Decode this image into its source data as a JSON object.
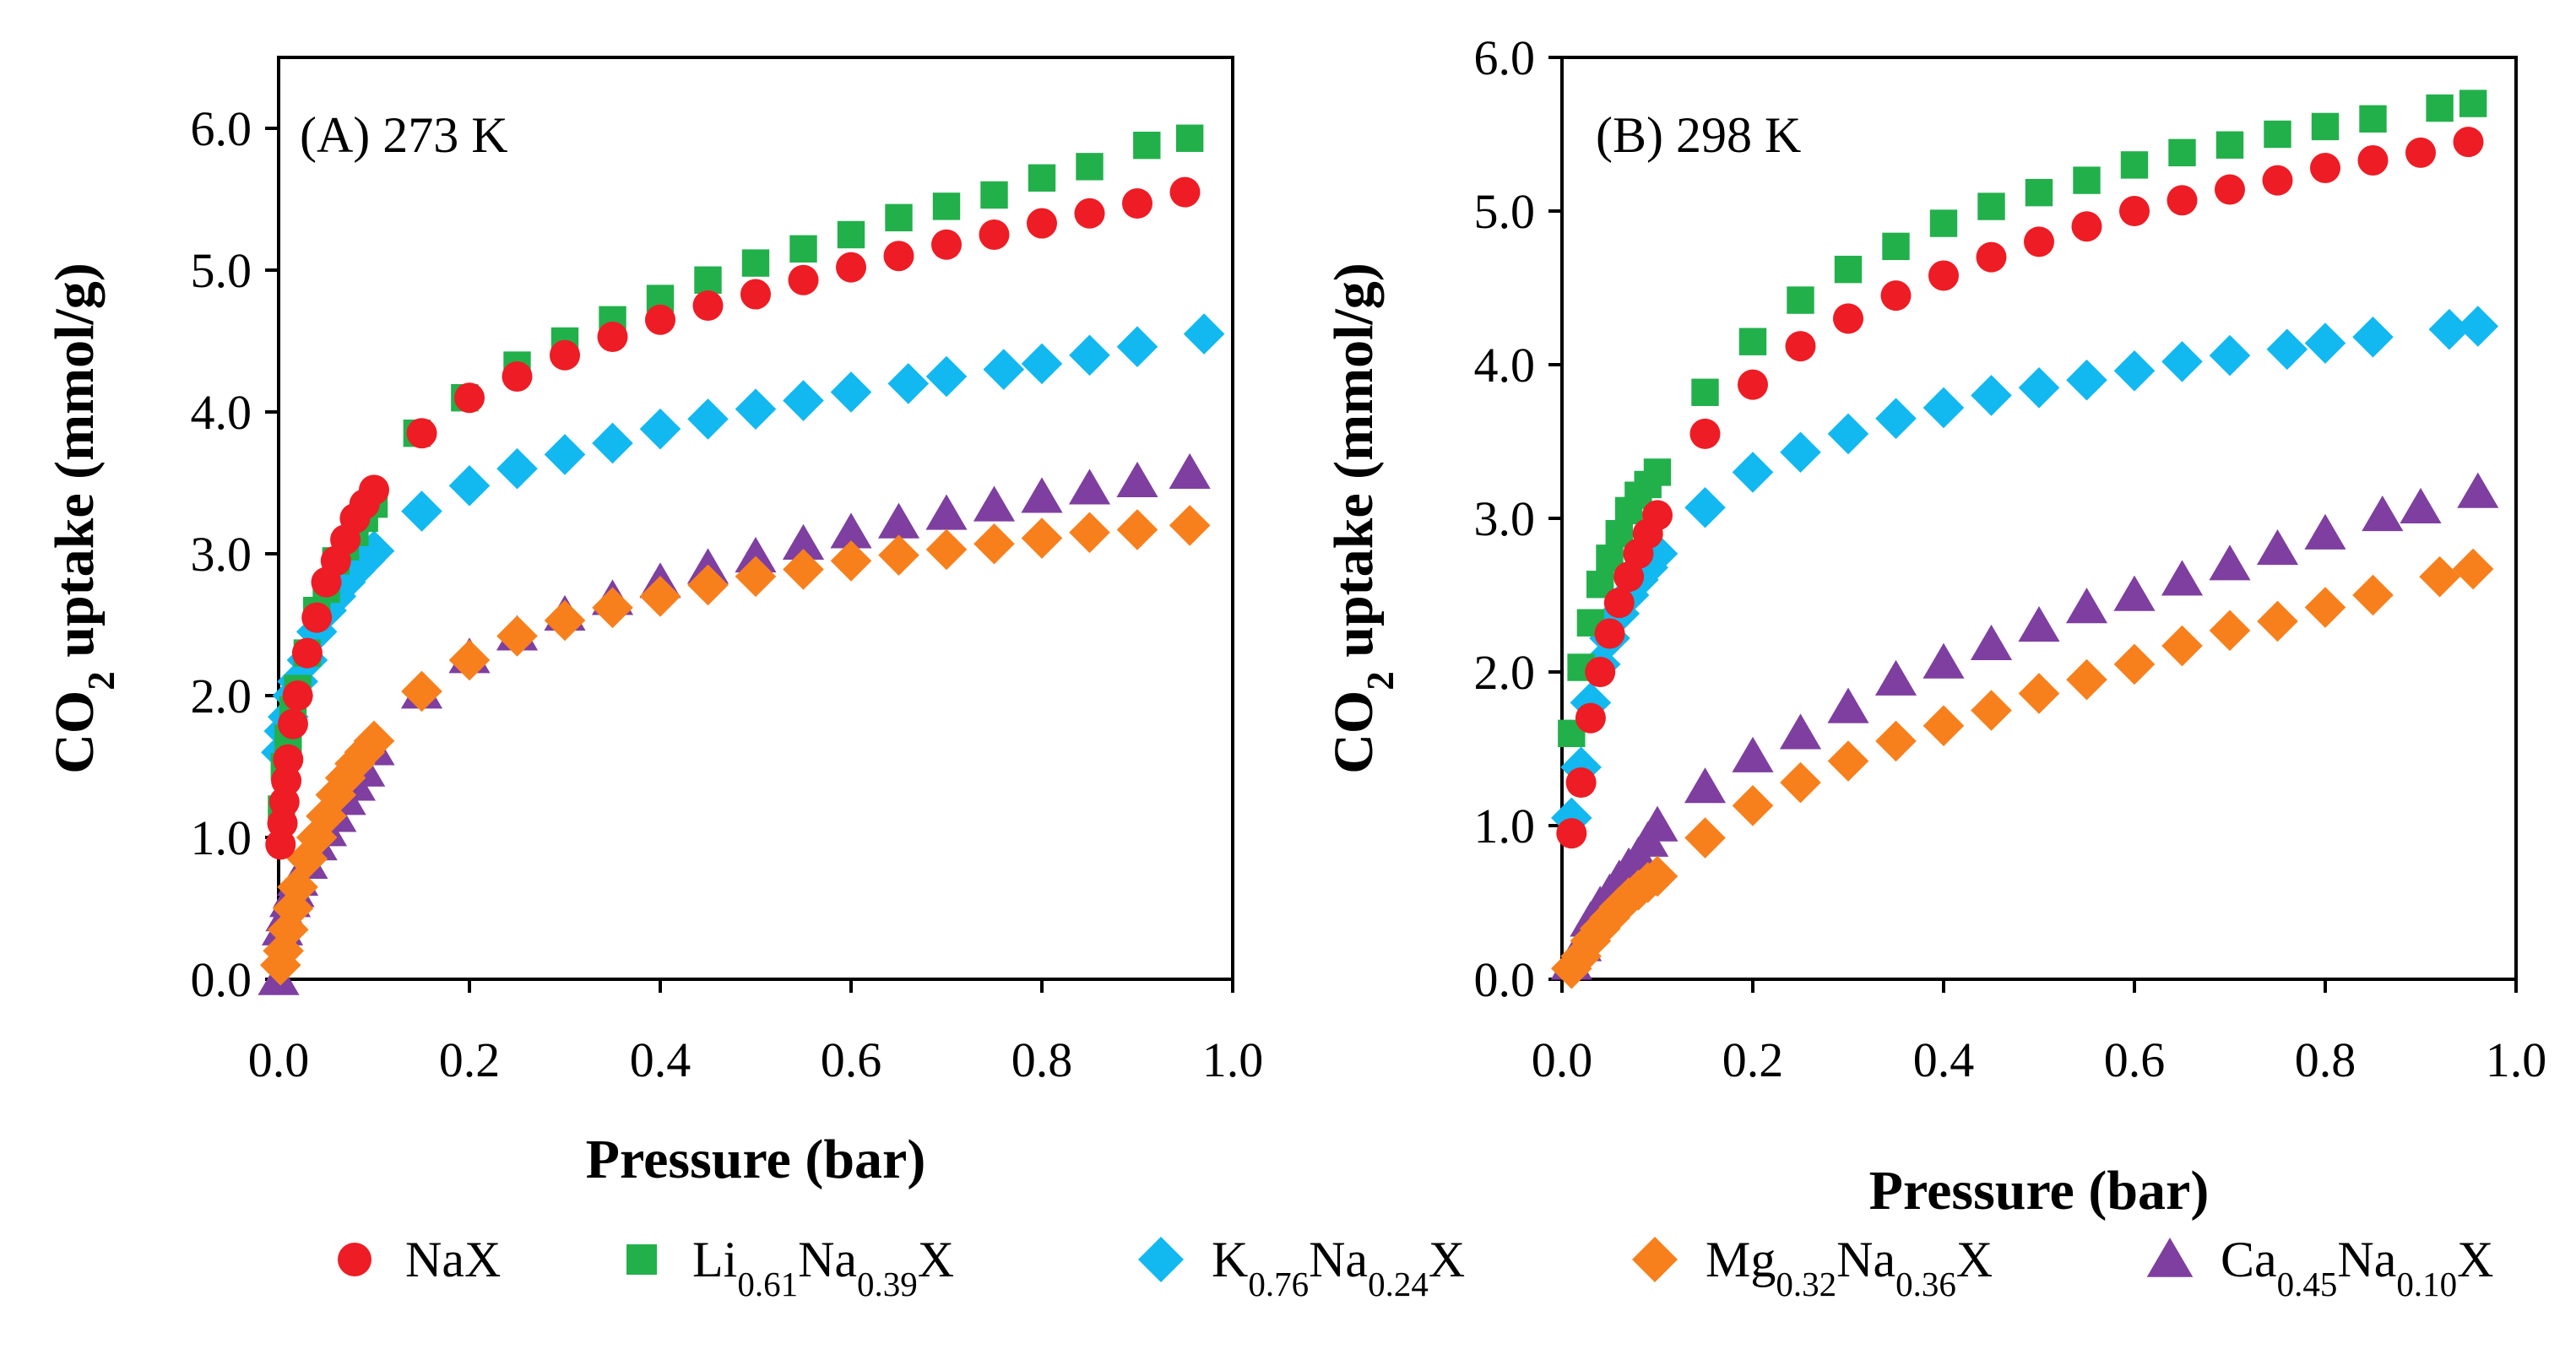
{
  "colors": {
    "NaX": "#ee1c24",
    "Li": "#22b04b",
    "K": "#12b8f0",
    "Mg": "#f7801d",
    "Ca": "#7e3fa0"
  },
  "legend": [
    {
      "key": "NaX",
      "marker": "circle",
      "parts": [
        {
          "t": "NaX"
        }
      ]
    },
    {
      "key": "Li",
      "marker": "square",
      "parts": [
        {
          "t": "Li"
        },
        {
          "t": "0.61",
          "sub": true
        },
        {
          "t": "Na"
        },
        {
          "t": "0.39",
          "sub": true
        },
        {
          "t": "X"
        }
      ]
    },
    {
      "key": "K",
      "marker": "diamond",
      "parts": [
        {
          "t": "K"
        },
        {
          "t": "0.76",
          "sub": true
        },
        {
          "t": "Na"
        },
        {
          "t": "0.24",
          "sub": true
        },
        {
          "t": "X"
        }
      ]
    },
    {
      "key": "Mg",
      "marker": "diamond",
      "parts": [
        {
          "t": "Mg"
        },
        {
          "t": "0.32",
          "sub": true
        },
        {
          "t": "Na"
        },
        {
          "t": "0.36",
          "sub": true
        },
        {
          "t": "X"
        }
      ]
    },
    {
      "key": "Ca",
      "marker": "triangle",
      "parts": [
        {
          "t": "Ca"
        },
        {
          "t": "0.45",
          "sub": true
        },
        {
          "t": "Na"
        },
        {
          "t": "0.10",
          "sub": true
        },
        {
          "t": "X"
        }
      ]
    }
  ],
  "chart_data": [
    {
      "type": "scatter",
      "title": "(A) 273 K",
      "xlabel": "Pressure (bar)",
      "ylabel": "CO2 uptake (mmol/g)",
      "ylabel_parts": [
        {
          "t": "CO"
        },
        {
          "t": "2",
          "sub": true
        },
        {
          "t": " uptake (mmol/g)"
        }
      ],
      "xlim": [
        0.0,
        1.0
      ],
      "ylim": [
        0.0,
        6.5
      ],
      "xticks": [
        "0.0",
        "0.2",
        "0.4",
        "0.6",
        "0.8",
        "1.0"
      ],
      "xtick_values": [
        0.0,
        0.2,
        0.4,
        0.6,
        0.8,
        1.0
      ],
      "yticks": [
        "0.0",
        "1.0",
        "2.0",
        "3.0",
        "4.0",
        "5.0",
        "6.0"
      ],
      "ytick_values": [
        0,
        1,
        2,
        3,
        4,
        5,
        6
      ],
      "series": [
        {
          "name": "NaX",
          "key": "NaX",
          "marker": "circle",
          "x": [
            0.002,
            0.004,
            0.006,
            0.008,
            0.01,
            0.015,
            0.02,
            0.03,
            0.04,
            0.05,
            0.06,
            0.07,
            0.08,
            0.09,
            0.1,
            0.15,
            0.2,
            0.25,
            0.3,
            0.35,
            0.4,
            0.45,
            0.5,
            0.55,
            0.6,
            0.65,
            0.7,
            0.75,
            0.8,
            0.85,
            0.9,
            0.95
          ],
          "y": [
            0.95,
            1.1,
            1.25,
            1.4,
            1.55,
            1.8,
            2.0,
            2.3,
            2.55,
            2.8,
            2.95,
            3.1,
            3.25,
            3.35,
            3.45,
            3.85,
            4.1,
            4.25,
            4.4,
            4.53,
            4.65,
            4.75,
            4.83,
            4.93,
            5.02,
            5.1,
            5.18,
            5.25,
            5.33,
            5.4,
            5.47,
            5.55
          ]
        },
        {
          "name": "Li0.61Na0.39X",
          "key": "Li",
          "marker": "square",
          "x": [
            0.003,
            0.006,
            0.01,
            0.015,
            0.02,
            0.03,
            0.04,
            0.05,
            0.06,
            0.07,
            0.08,
            0.09,
            0.1,
            0.145,
            0.195,
            0.25,
            0.3,
            0.35,
            0.4,
            0.45,
            0.5,
            0.55,
            0.6,
            0.65,
            0.7,
            0.75,
            0.8,
            0.85,
            0.91,
            0.955
          ],
          "y": [
            1.2,
            1.5,
            1.7,
            1.9,
            2.05,
            2.3,
            2.6,
            2.75,
            2.95,
            3.05,
            3.15,
            3.25,
            3.35,
            3.85,
            4.1,
            4.33,
            4.5,
            4.65,
            4.8,
            4.93,
            5.05,
            5.15,
            5.25,
            5.37,
            5.45,
            5.53,
            5.65,
            5.73,
            5.88,
            5.93
          ]
        },
        {
          "name": "K0.76Na0.24X",
          "key": "K",
          "marker": "diamond",
          "x": [
            0.003,
            0.006,
            0.01,
            0.015,
            0.02,
            0.03,
            0.04,
            0.05,
            0.06,
            0.07,
            0.08,
            0.09,
            0.1,
            0.15,
            0.2,
            0.25,
            0.3,
            0.35,
            0.4,
            0.45,
            0.5,
            0.55,
            0.6,
            0.66,
            0.7,
            0.76,
            0.8,
            0.85,
            0.9,
            0.97
          ],
          "y": [
            1.6,
            1.75,
            1.85,
            2.0,
            2.1,
            2.25,
            2.45,
            2.6,
            2.7,
            2.8,
            2.88,
            2.95,
            3.02,
            3.3,
            3.48,
            3.6,
            3.7,
            3.78,
            3.88,
            3.95,
            4.02,
            4.08,
            4.14,
            4.2,
            4.25,
            4.3,
            4.34,
            4.4,
            4.46,
            4.55
          ]
        },
        {
          "name": "Mg0.32Na0.36X",
          "key": "Mg",
          "marker": "diamond",
          "x": [
            0.002,
            0.005,
            0.01,
            0.015,
            0.02,
            0.03,
            0.04,
            0.05,
            0.06,
            0.07,
            0.08,
            0.09,
            0.1,
            0.15,
            0.2,
            0.25,
            0.3,
            0.35,
            0.4,
            0.45,
            0.5,
            0.55,
            0.6,
            0.65,
            0.7,
            0.75,
            0.8,
            0.85,
            0.9,
            0.955
          ],
          "y": [
            0.1,
            0.2,
            0.35,
            0.5,
            0.65,
            0.85,
            1.0,
            1.15,
            1.3,
            1.42,
            1.52,
            1.6,
            1.68,
            2.03,
            2.25,
            2.42,
            2.53,
            2.62,
            2.7,
            2.78,
            2.84,
            2.89,
            2.95,
            2.99,
            3.03,
            3.07,
            3.11,
            3.15,
            3.17,
            3.2
          ]
        },
        {
          "name": "Ca0.45Na0.10X",
          "key": "Ca",
          "marker": "triangle",
          "x": [
            0.0,
            0.004,
            0.008,
            0.012,
            0.016,
            0.02,
            0.03,
            0.04,
            0.05,
            0.06,
            0.07,
            0.08,
            0.09,
            0.1,
            0.15,
            0.2,
            0.25,
            0.3,
            0.35,
            0.4,
            0.45,
            0.5,
            0.55,
            0.6,
            0.65,
            0.7,
            0.75,
            0.8,
            0.85,
            0.9,
            0.955
          ],
          "y": [
            0.0,
            0.35,
            0.45,
            0.55,
            0.62,
            0.7,
            0.82,
            0.95,
            1.05,
            1.15,
            1.27,
            1.37,
            1.47,
            1.62,
            2.02,
            2.27,
            2.43,
            2.57,
            2.68,
            2.8,
            2.9,
            2.98,
            3.07,
            3.15,
            3.22,
            3.28,
            3.34,
            3.4,
            3.46,
            3.51,
            3.57
          ]
        }
      ]
    },
    {
      "type": "scatter",
      "title": "(B) 298 K",
      "xlabel": "Pressure (bar)",
      "ylabel": "CO2 uptake (mmol/g)",
      "ylabel_parts": [
        {
          "t": "CO"
        },
        {
          "t": "2",
          "sub": true
        },
        {
          "t": " uptake (mmol/g)"
        }
      ],
      "xlim": [
        0.0,
        1.0
      ],
      "ylim": [
        0.0,
        6.0
      ],
      "xticks": [
        "0.0",
        "0.2",
        "0.4",
        "0.6",
        "0.8",
        "1.0"
      ],
      "xtick_values": [
        0.0,
        0.2,
        0.4,
        0.6,
        0.8,
        1.0
      ],
      "yticks": [
        "0.0",
        "1.0",
        "2.0",
        "3.0",
        "4.0",
        "5.0",
        "6.0"
      ],
      "ytick_values": [
        0,
        1,
        2,
        3,
        4,
        5,
        6
      ],
      "series": [
        {
          "name": "NaX",
          "key": "NaX",
          "marker": "circle",
          "x": [
            0.01,
            0.02,
            0.03,
            0.04,
            0.05,
            0.06,
            0.07,
            0.08,
            0.09,
            0.1,
            0.15,
            0.2,
            0.25,
            0.3,
            0.35,
            0.4,
            0.45,
            0.5,
            0.55,
            0.6,
            0.65,
            0.7,
            0.75,
            0.8,
            0.85,
            0.9,
            0.95
          ],
          "y": [
            0.95,
            1.28,
            1.7,
            2.0,
            2.25,
            2.45,
            2.62,
            2.77,
            2.9,
            3.02,
            3.55,
            3.87,
            4.12,
            4.3,
            4.45,
            4.58,
            4.7,
            4.8,
            4.9,
            5.0,
            5.07,
            5.14,
            5.2,
            5.28,
            5.33,
            5.38,
            5.45
          ]
        },
        {
          "name": "Li0.61Na0.39X",
          "key": "Li",
          "marker": "square",
          "x": [
            0.01,
            0.02,
            0.03,
            0.04,
            0.05,
            0.06,
            0.07,
            0.08,
            0.09,
            0.1,
            0.15,
            0.2,
            0.25,
            0.3,
            0.35,
            0.4,
            0.45,
            0.5,
            0.55,
            0.6,
            0.65,
            0.7,
            0.75,
            0.8,
            0.85,
            0.92,
            0.955
          ],
          "y": [
            1.6,
            2.03,
            2.32,
            2.57,
            2.74,
            2.9,
            3.05,
            3.15,
            3.22,
            3.3,
            3.82,
            4.15,
            4.42,
            4.62,
            4.77,
            4.92,
            5.03,
            5.12,
            5.2,
            5.3,
            5.38,
            5.43,
            5.5,
            5.55,
            5.6,
            5.67,
            5.7
          ]
        },
        {
          "name": "K0.76Na0.24X",
          "key": "K",
          "marker": "diamond",
          "x": [
            0.01,
            0.02,
            0.03,
            0.04,
            0.05,
            0.06,
            0.07,
            0.08,
            0.09,
            0.1,
            0.15,
            0.2,
            0.25,
            0.3,
            0.35,
            0.4,
            0.45,
            0.5,
            0.55,
            0.6,
            0.65,
            0.7,
            0.76,
            0.8,
            0.85,
            0.93,
            0.96
          ],
          "y": [
            1.05,
            1.38,
            1.8,
            2.05,
            2.22,
            2.38,
            2.5,
            2.6,
            2.68,
            2.77,
            3.07,
            3.3,
            3.43,
            3.55,
            3.65,
            3.72,
            3.8,
            3.85,
            3.9,
            3.96,
            4.02,
            4.06,
            4.1,
            4.14,
            4.18,
            4.23,
            4.25
          ]
        },
        {
          "name": "Mg0.32Na0.36X",
          "key": "Mg",
          "marker": "diamond",
          "x": [
            0.01,
            0.02,
            0.03,
            0.04,
            0.05,
            0.06,
            0.07,
            0.08,
            0.09,
            0.1,
            0.15,
            0.2,
            0.25,
            0.3,
            0.35,
            0.4,
            0.45,
            0.5,
            0.55,
            0.6,
            0.65,
            0.7,
            0.75,
            0.8,
            0.85,
            0.92,
            0.955
          ],
          "y": [
            0.07,
            0.15,
            0.25,
            0.33,
            0.4,
            0.47,
            0.53,
            0.58,
            0.63,
            0.67,
            0.92,
            1.13,
            1.28,
            1.42,
            1.55,
            1.65,
            1.75,
            1.86,
            1.95,
            2.05,
            2.17,
            2.27,
            2.33,
            2.42,
            2.5,
            2.62,
            2.67
          ]
        },
        {
          "name": "Ca0.45Na0.10X",
          "key": "Ca",
          "marker": "triangle",
          "x": [
            0.01,
            0.02,
            0.03,
            0.04,
            0.05,
            0.06,
            0.07,
            0.08,
            0.09,
            0.1,
            0.15,
            0.2,
            0.25,
            0.3,
            0.35,
            0.4,
            0.45,
            0.5,
            0.55,
            0.6,
            0.65,
            0.7,
            0.75,
            0.8,
            0.86,
            0.9,
            0.96
          ],
          "y": [
            0.1,
            0.22,
            0.38,
            0.48,
            0.56,
            0.65,
            0.73,
            0.8,
            0.9,
            1.0,
            1.25,
            1.45,
            1.6,
            1.77,
            1.95,
            2.06,
            2.18,
            2.3,
            2.42,
            2.5,
            2.6,
            2.7,
            2.8,
            2.9,
            3.02,
            3.07,
            3.17
          ]
        }
      ]
    }
  ]
}
